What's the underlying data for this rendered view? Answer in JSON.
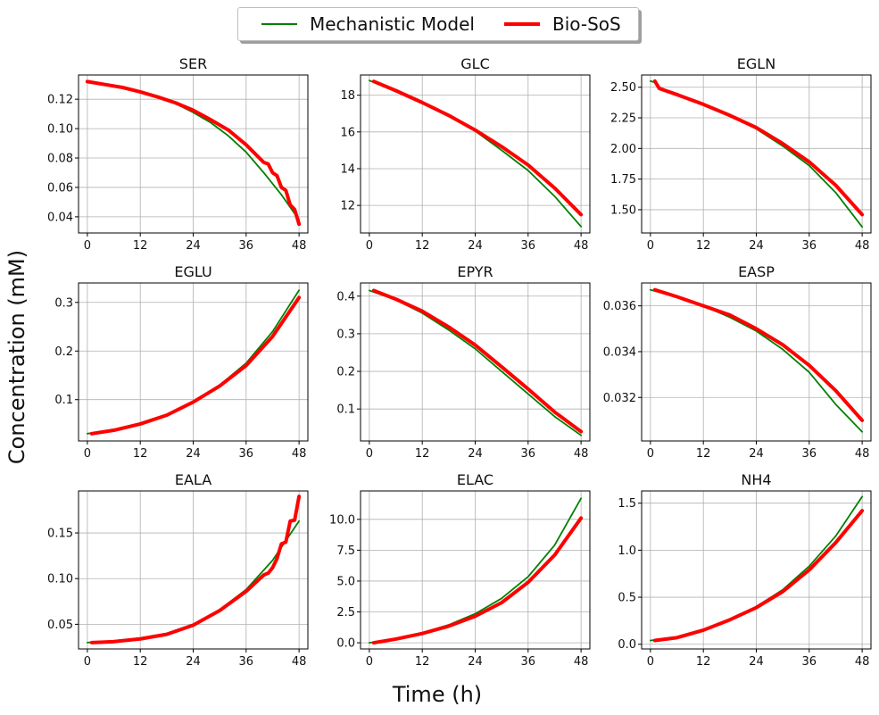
{
  "legend": {
    "model_label": "Mechanistic Model",
    "model_color": "#008000",
    "sos_label": "Bio-SoS",
    "sos_color": "#ff0000"
  },
  "axes": {
    "xlabel": "Time (h)",
    "ylabel": "Concentration (mM)"
  },
  "chart_data": [
    {
      "type": "line",
      "title": "SER",
      "grid": true,
      "xlim": [
        -2,
        50
      ],
      "xticks": [
        0,
        12,
        24,
        36,
        48
      ],
      "xtick_labels": [
        "0",
        "12",
        "24",
        "36",
        "48"
      ],
      "ylim": [
        0.029,
        0.1365
      ],
      "yticks": [
        0.04,
        0.06,
        0.08,
        0.1,
        0.12
      ],
      "ytick_labels": [
        "0.04",
        "0.06",
        "0.08",
        "0.10",
        "0.12"
      ],
      "series": [
        {
          "name": "Mechanistic Model",
          "x": [
            0,
            4,
            8,
            12,
            16,
            20,
            24,
            28,
            32,
            36,
            40,
            44,
            48
          ],
          "y": [
            0.132,
            0.13,
            0.128,
            0.125,
            0.1215,
            0.117,
            0.111,
            0.104,
            0.095,
            0.084,
            0.07,
            0.055,
            0.038
          ]
        },
        {
          "name": "Bio-SoS",
          "x": [
            0,
            4,
            8,
            12,
            16,
            20,
            24,
            28,
            32,
            36,
            38,
            40,
            41,
            42,
            43,
            44,
            45,
            46,
            47,
            48
          ],
          "y": [
            0.132,
            0.13,
            0.128,
            0.125,
            0.1215,
            0.1175,
            0.1125,
            0.106,
            0.099,
            0.089,
            0.083,
            0.077,
            0.076,
            0.07,
            0.068,
            0.06,
            0.058,
            0.048,
            0.045,
            0.035
          ]
        }
      ]
    },
    {
      "type": "line",
      "title": "GLC",
      "grid": true,
      "xlim": [
        -2,
        50
      ],
      "xticks": [
        0,
        12,
        24,
        36,
        48
      ],
      "xtick_labels": [
        "0",
        "12",
        "24",
        "36",
        "48"
      ],
      "ylim": [
        10.5,
        19.1
      ],
      "yticks": [
        12,
        14,
        16,
        18
      ],
      "ytick_labels": [
        "12",
        "14",
        "16",
        "18"
      ],
      "series": [
        {
          "name": "Mechanistic Model",
          "x": [
            0,
            6,
            12,
            18,
            24,
            30,
            36,
            42,
            48
          ],
          "y": [
            18.8,
            18.2,
            17.55,
            16.85,
            16.05,
            15.0,
            13.9,
            12.5,
            10.85
          ]
        },
        {
          "name": "Bio-SoS",
          "x": [
            1,
            6,
            12,
            18,
            24,
            30,
            36,
            42,
            48
          ],
          "y": [
            18.75,
            18.25,
            17.6,
            16.9,
            16.1,
            15.2,
            14.2,
            12.95,
            11.5
          ]
        }
      ]
    },
    {
      "type": "line",
      "title": "EGLN",
      "grid": true,
      "xlim": [
        -2,
        50
      ],
      "xticks": [
        0,
        12,
        24,
        36,
        48
      ],
      "xtick_labels": [
        "0",
        "12",
        "24",
        "36",
        "48"
      ],
      "ylim": [
        1.31,
        2.6
      ],
      "yticks": [
        1.5,
        1.75,
        2.0,
        2.25,
        2.5
      ],
      "ytick_labels": [
        "1.50",
        "1.75",
        "2.00",
        "2.25",
        "2.50"
      ],
      "series": [
        {
          "name": "Mechanistic Model",
          "x": [
            0,
            1,
            2,
            6,
            12,
            18,
            24,
            30,
            36,
            42,
            48
          ],
          "y": [
            2.55,
            2.54,
            2.5,
            2.44,
            2.36,
            2.27,
            2.16,
            2.02,
            1.86,
            1.64,
            1.36
          ]
        },
        {
          "name": "Bio-SoS",
          "x": [
            1,
            2,
            6,
            12,
            18,
            24,
            30,
            36,
            42,
            48
          ],
          "y": [
            2.55,
            2.49,
            2.44,
            2.36,
            2.27,
            2.17,
            2.04,
            1.89,
            1.7,
            1.46
          ]
        }
      ]
    },
    {
      "type": "line",
      "title": "EGLU",
      "grid": true,
      "xlim": [
        -2,
        50
      ],
      "xticks": [
        0,
        12,
        24,
        36,
        48
      ],
      "xtick_labels": [
        "0",
        "12",
        "24",
        "36",
        "48"
      ],
      "ylim": [
        0.015,
        0.34
      ],
      "yticks": [
        0.1,
        0.2,
        0.3
      ],
      "ytick_labels": [
        "0.1",
        "0.2",
        "0.3"
      ],
      "series": [
        {
          "name": "Mechanistic Model",
          "x": [
            0,
            6,
            12,
            18,
            24,
            30,
            36,
            42,
            48
          ],
          "y": [
            0.03,
            0.037,
            0.05,
            0.068,
            0.095,
            0.13,
            0.175,
            0.24,
            0.325
          ]
        },
        {
          "name": "Bio-SoS",
          "x": [
            1,
            6,
            12,
            18,
            24,
            30,
            36,
            42,
            48
          ],
          "y": [
            0.03,
            0.037,
            0.05,
            0.068,
            0.095,
            0.128,
            0.17,
            0.23,
            0.31
          ]
        }
      ]
    },
    {
      "type": "line",
      "title": "EPYR",
      "grid": true,
      "xlim": [
        -2,
        50
      ],
      "xticks": [
        0,
        12,
        24,
        36,
        48
      ],
      "xtick_labels": [
        "0",
        "12",
        "24",
        "36",
        "48"
      ],
      "ylim": [
        0.015,
        0.435
      ],
      "yticks": [
        0.1,
        0.2,
        0.3,
        0.4
      ],
      "ytick_labels": [
        "0.1",
        "0.2",
        "0.3",
        "0.4"
      ],
      "series": [
        {
          "name": "Mechanistic Model",
          "x": [
            0,
            6,
            12,
            18,
            24,
            30,
            36,
            42,
            48
          ],
          "y": [
            0.415,
            0.39,
            0.355,
            0.31,
            0.26,
            0.2,
            0.14,
            0.08,
            0.03
          ]
        },
        {
          "name": "Bio-SoS",
          "x": [
            1,
            6,
            12,
            18,
            24,
            30,
            36,
            42,
            48
          ],
          "y": [
            0.415,
            0.392,
            0.36,
            0.318,
            0.27,
            0.212,
            0.153,
            0.092,
            0.04
          ]
        }
      ]
    },
    {
      "type": "line",
      "title": "EASP",
      "grid": true,
      "xlim": [
        -2,
        50
      ],
      "xticks": [
        0,
        12,
        24,
        36,
        48
      ],
      "xtick_labels": [
        "0",
        "12",
        "24",
        "36",
        "48"
      ],
      "ylim": [
        0.0301,
        0.037
      ],
      "yticks": [
        0.032,
        0.034,
        0.036
      ],
      "ytick_labels": [
        "0.032",
        "0.034",
        "0.036"
      ],
      "series": [
        {
          "name": "Mechanistic Model",
          "x": [
            0,
            6,
            12,
            18,
            24,
            30,
            36,
            42,
            48
          ],
          "y": [
            0.0367,
            0.0364,
            0.036,
            0.0355,
            0.0349,
            0.0341,
            0.0331,
            0.0317,
            0.0305
          ]
        },
        {
          "name": "Bio-SoS",
          "x": [
            1,
            6,
            12,
            18,
            24,
            30,
            36,
            42,
            48
          ],
          "y": [
            0.0367,
            0.0364,
            0.036,
            0.0356,
            0.035,
            0.0343,
            0.0334,
            0.0323,
            0.031
          ]
        }
      ]
    },
    {
      "type": "line",
      "title": "EALA",
      "grid": true,
      "xlim": [
        -2,
        50
      ],
      "xticks": [
        0,
        12,
        24,
        36,
        48
      ],
      "xtick_labels": [
        "0",
        "12",
        "24",
        "36",
        "48"
      ],
      "ylim": [
        0.023,
        0.196
      ],
      "yticks": [
        0.05,
        0.1,
        0.15
      ],
      "ytick_labels": [
        "0.05",
        "0.10",
        "0.15"
      ],
      "series": [
        {
          "name": "Mechanistic Model",
          "x": [
            0,
            6,
            12,
            18,
            24,
            30,
            36,
            42,
            48
          ],
          "y": [
            0.03,
            0.032,
            0.035,
            0.04,
            0.05,
            0.066,
            0.088,
            0.12,
            0.163
          ]
        },
        {
          "name": "Bio-SoS",
          "x": [
            1,
            6,
            12,
            18,
            24,
            30,
            36,
            40,
            41,
            42,
            43,
            44,
            45,
            46,
            47,
            48
          ],
          "y": [
            0.03,
            0.031,
            0.034,
            0.039,
            0.049,
            0.065,
            0.086,
            0.104,
            0.106,
            0.112,
            0.122,
            0.138,
            0.14,
            0.163,
            0.164,
            0.19
          ]
        }
      ]
    },
    {
      "type": "line",
      "title": "ELAC",
      "grid": true,
      "xlim": [
        -2,
        50
      ],
      "xticks": [
        0,
        12,
        24,
        36,
        48
      ],
      "xtick_labels": [
        "0",
        "12",
        "24",
        "36",
        "48"
      ],
      "ylim": [
        -0.5,
        12.3
      ],
      "yticks": [
        0.0,
        2.5,
        5.0,
        7.5,
        10.0
      ],
      "ytick_labels": [
        "0.0",
        "2.5",
        "5.0",
        "7.5",
        "10.0"
      ],
      "series": [
        {
          "name": "Mechanistic Model",
          "x": [
            0,
            6,
            12,
            18,
            24,
            30,
            36,
            42,
            48
          ],
          "y": [
            0.0,
            0.3,
            0.8,
            1.45,
            2.35,
            3.6,
            5.35,
            7.9,
            11.7
          ]
        },
        {
          "name": "Bio-SoS",
          "x": [
            1,
            6,
            12,
            18,
            24,
            30,
            36,
            42,
            48
          ],
          "y": [
            0.0,
            0.3,
            0.75,
            1.35,
            2.15,
            3.25,
            4.9,
            7.1,
            10.1
          ]
        }
      ]
    },
    {
      "type": "line",
      "title": "NH4",
      "grid": true,
      "xlim": [
        -2,
        50
      ],
      "xticks": [
        0,
        12,
        24,
        36,
        48
      ],
      "xtick_labels": [
        "0",
        "12",
        "24",
        "36",
        "48"
      ],
      "ylim": [
        -0.05,
        1.63
      ],
      "yticks": [
        0.0,
        0.5,
        1.0,
        1.5
      ],
      "ytick_labels": [
        "0.0",
        "0.5",
        "1.0",
        "1.5"
      ],
      "series": [
        {
          "name": "Mechanistic Model",
          "x": [
            0,
            6,
            12,
            18,
            24,
            30,
            36,
            42,
            48
          ],
          "y": [
            0.04,
            0.07,
            0.15,
            0.26,
            0.4,
            0.58,
            0.83,
            1.15,
            1.57
          ]
        },
        {
          "name": "Bio-SoS",
          "x": [
            1,
            6,
            12,
            18,
            24,
            30,
            36,
            42,
            48
          ],
          "y": [
            0.04,
            0.07,
            0.15,
            0.26,
            0.39,
            0.56,
            0.79,
            1.08,
            1.42
          ]
        }
      ]
    }
  ]
}
